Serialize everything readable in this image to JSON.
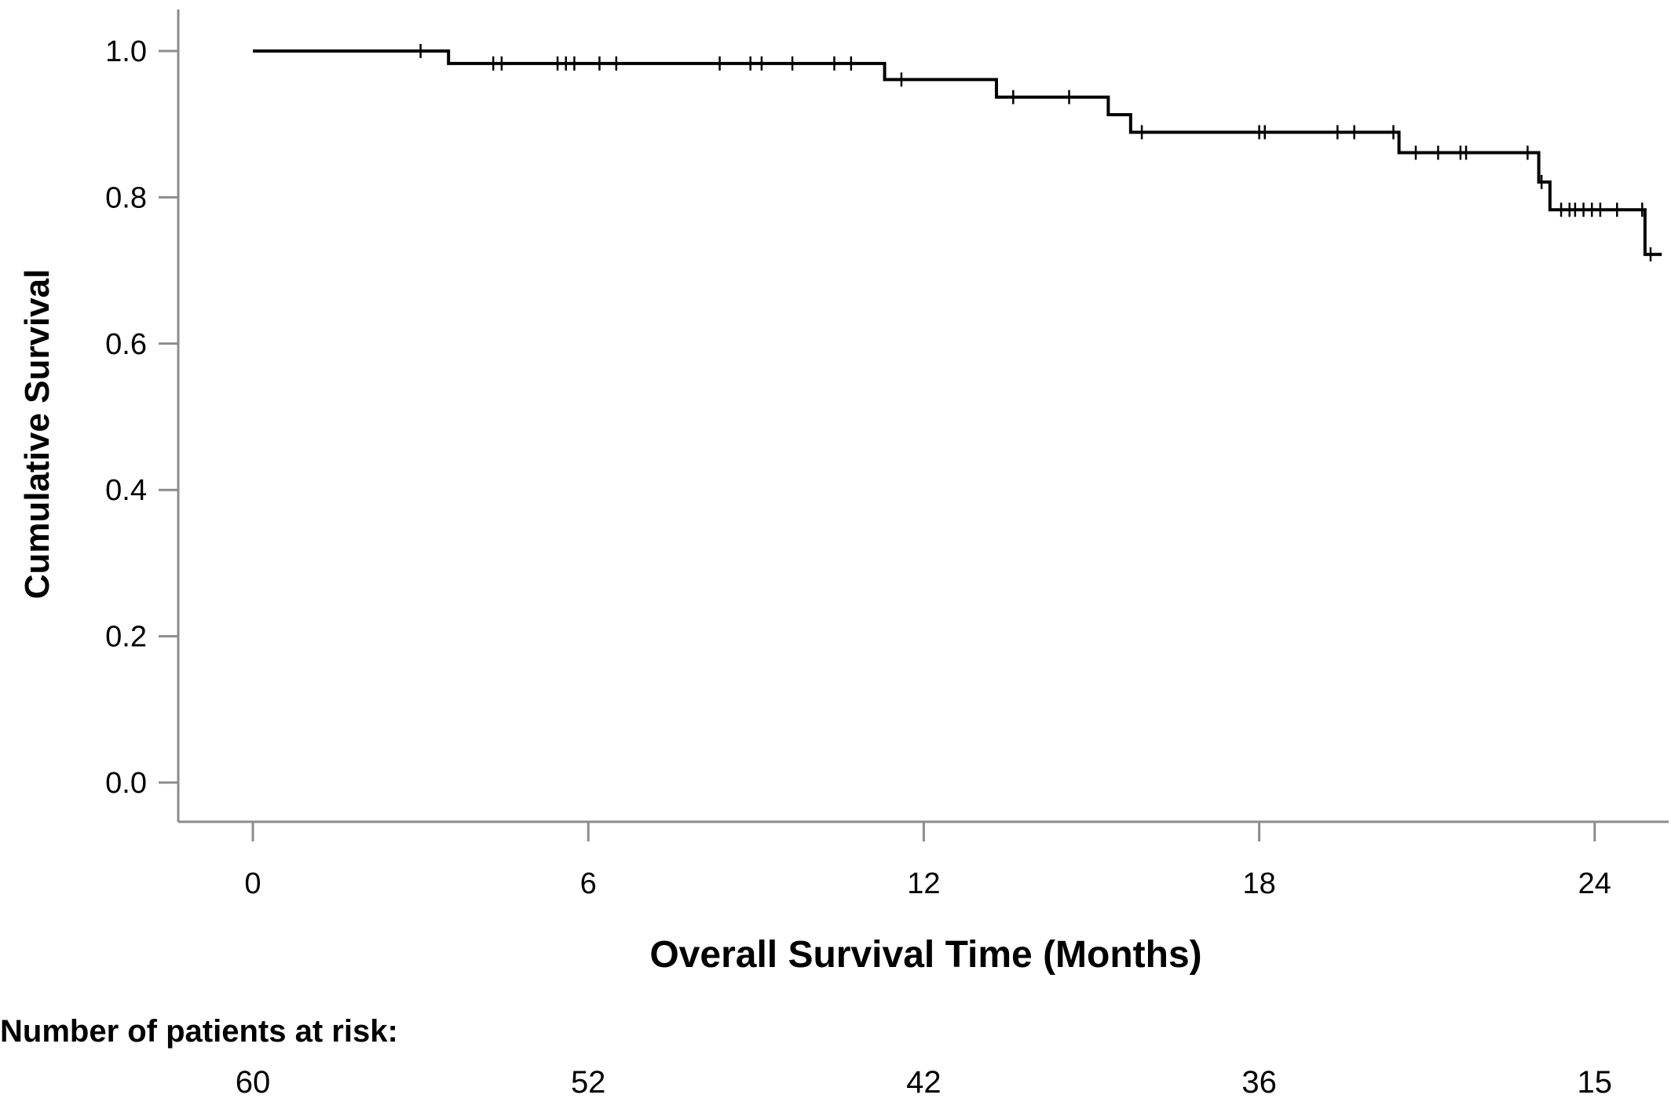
{
  "chart_data": {
    "type": "line",
    "subtype": "kaplan-meier",
    "title": "",
    "xlabel": "Overall Survival Time (Months)",
    "ylabel": "Cumulative Survival",
    "xlim": [
      -1.3,
      25.2
    ],
    "ylim": [
      -0.05,
      1.05
    ],
    "x_ticks": [
      0,
      6,
      12,
      18,
      24
    ],
    "y_ticks": [
      0.0,
      0.2,
      0.4,
      0.6,
      0.8,
      1.0
    ],
    "y_tick_labels": [
      "0.0",
      "0.2",
      "0.4",
      "0.6",
      "0.8",
      "1.0"
    ],
    "grid": false,
    "series": [
      {
        "steps": [
          {
            "x": 0,
            "y": 1.0
          },
          {
            "x": 3.5,
            "y": 0.983
          },
          {
            "x": 11.3,
            "y": 0.961
          },
          {
            "x": 13.3,
            "y": 0.937
          },
          {
            "x": 15.3,
            "y": 0.913
          },
          {
            "x": 15.7,
            "y": 0.889
          },
          {
            "x": 20.5,
            "y": 0.861
          },
          {
            "x": 23.0,
            "y": 0.821
          },
          {
            "x": 23.2,
            "y": 0.783
          },
          {
            "x": 24.9,
            "y": 0.722
          }
        ],
        "end_x": 25.2,
        "censored": [
          {
            "x": 3.0,
            "y": 1.0
          },
          {
            "x": 4.3,
            "y": 0.983
          },
          {
            "x": 4.45,
            "y": 0.983
          },
          {
            "x": 5.45,
            "y": 0.983
          },
          {
            "x": 5.6,
            "y": 0.983
          },
          {
            "x": 5.75,
            "y": 0.983
          },
          {
            "x": 6.2,
            "y": 0.983
          },
          {
            "x": 6.5,
            "y": 0.983
          },
          {
            "x": 8.35,
            "y": 0.983
          },
          {
            "x": 8.9,
            "y": 0.983
          },
          {
            "x": 9.1,
            "y": 0.983
          },
          {
            "x": 9.65,
            "y": 0.983
          },
          {
            "x": 10.4,
            "y": 0.983
          },
          {
            "x": 10.7,
            "y": 0.983
          },
          {
            "x": 11.6,
            "y": 0.961
          },
          {
            "x": 13.6,
            "y": 0.937
          },
          {
            "x": 14.6,
            "y": 0.937
          },
          {
            "x": 15.9,
            "y": 0.889
          },
          {
            "x": 18.0,
            "y": 0.889
          },
          {
            "x": 18.1,
            "y": 0.889
          },
          {
            "x": 19.4,
            "y": 0.889
          },
          {
            "x": 19.7,
            "y": 0.889
          },
          {
            "x": 20.4,
            "y": 0.889
          },
          {
            "x": 20.8,
            "y": 0.861
          },
          {
            "x": 21.2,
            "y": 0.861
          },
          {
            "x": 21.6,
            "y": 0.861
          },
          {
            "x": 21.7,
            "y": 0.861
          },
          {
            "x": 22.8,
            "y": 0.861
          },
          {
            "x": 23.05,
            "y": 0.821
          },
          {
            "x": 23.4,
            "y": 0.783
          },
          {
            "x": 23.55,
            "y": 0.783
          },
          {
            "x": 23.65,
            "y": 0.783
          },
          {
            "x": 23.8,
            "y": 0.783
          },
          {
            "x": 23.95,
            "y": 0.783
          },
          {
            "x": 24.1,
            "y": 0.783
          },
          {
            "x": 24.4,
            "y": 0.783
          },
          {
            "x": 24.85,
            "y": 0.783
          },
          {
            "x": 25.0,
            "y": 0.722
          }
        ]
      }
    ],
    "risk_table": {
      "title": "Number of patients at risk:",
      "times": [
        0,
        6,
        12,
        18,
        24
      ],
      "counts": [
        "60",
        "52",
        "42",
        "36",
        "15"
      ]
    }
  }
}
